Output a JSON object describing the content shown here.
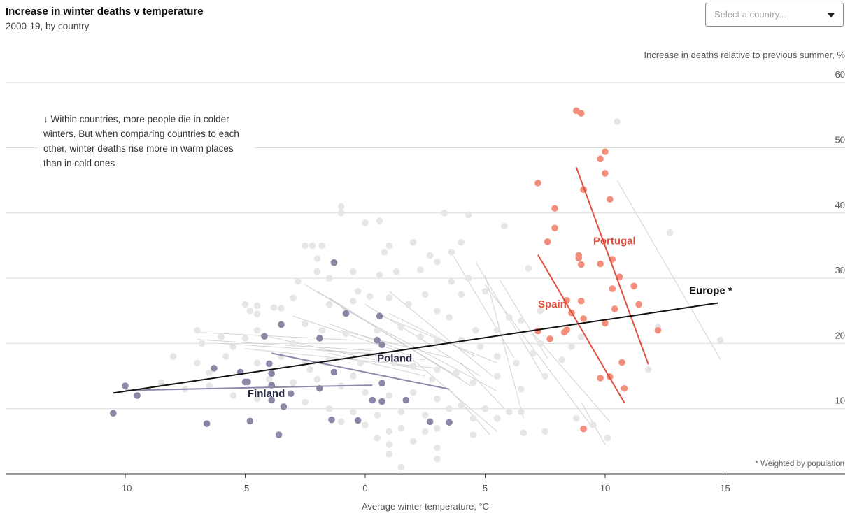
{
  "header": {
    "title": "Increase in winter deaths v temperature",
    "subtitle": "2000-19, by country"
  },
  "country_select": {
    "placeholder": "Select a country..."
  },
  "annotation": {
    "arrow": "↓",
    "lines": [
      "Within countries, more people die in colder",
      "winters. But when comparing countries to each",
      "other, winter deaths rise more in warm places",
      "than in cold ones"
    ]
  },
  "footnote": "* Weighted by population",
  "colors": {
    "cold": "#8a87a6",
    "warm": "#f28e7b",
    "warm_line": "#e0503e",
    "cold_line": "#8d89aa",
    "background_points": "#e6e6e6",
    "background_lines": "#d2d2d2",
    "europe": "#121212",
    "grid": "#dcdcdc",
    "cold_label": "#2d2e4a",
    "warm_label": "#e0503e"
  },
  "chart_data": {
    "type": "scatter",
    "title": "Increase in winter deaths v temperature",
    "subtitle": "2000-19, by country",
    "xlabel": "Average winter temperature, °C",
    "ylabel": "Increase in deaths relative to previous summer, %",
    "xlim": [
      -15,
      20
    ],
    "ylim": [
      0,
      60
    ],
    "xticks": [
      -10,
      -5,
      0,
      5,
      10,
      15
    ],
    "yticks": [
      10,
      20,
      30,
      40,
      50,
      60
    ],
    "grid": "horizontal",
    "highlighted_groups": [
      {
        "name": "Finland",
        "label_at": [
          -4.9,
          11.8
        ],
        "color_role": "cold",
        "trend": [
          [
            -10.0,
            12.8
          ],
          [
            0.3,
            13.6
          ]
        ],
        "points": [
          [
            -10.0,
            13.5
          ],
          [
            -9.5,
            12.0
          ],
          [
            -10.5,
            9.3
          ],
          [
            -6.6,
            7.7
          ],
          [
            -4.8,
            8.1
          ],
          [
            -3.6,
            6.0
          ],
          [
            -3.4,
            10.3
          ],
          [
            -3.9,
            11.3
          ],
          [
            -4.9,
            14.1
          ],
          [
            -5.2,
            15.6
          ],
          [
            -6.3,
            16.2
          ],
          [
            -3.5,
            22.9
          ]
        ]
      },
      {
        "name": "Poland",
        "label_at": [
          0.5,
          17.2
        ],
        "color_role": "cold",
        "trend": [
          [
            -3.9,
            18.5
          ],
          [
            3.5,
            13.0
          ]
        ],
        "points": [
          [
            -4.2,
            21.1
          ],
          [
            -4.0,
            16.9
          ],
          [
            -3.9,
            15.4
          ],
          [
            -3.9,
            13.6
          ],
          [
            -5.0,
            14.1
          ],
          [
            -3.1,
            12.3
          ],
          [
            -1.3,
            32.4
          ],
          [
            -0.8,
            24.6
          ],
          [
            0.6,
            24.2
          ],
          [
            0.5,
            20.5
          ],
          [
            0.7,
            19.8
          ],
          [
            -1.9,
            20.8
          ],
          [
            -1.3,
            15.6
          ],
          [
            -1.9,
            13.1
          ],
          [
            0.7,
            13.9
          ],
          [
            0.3,
            11.3
          ],
          [
            0.7,
            11.1
          ],
          [
            1.7,
            11.3
          ],
          [
            -1.4,
            8.3
          ],
          [
            -0.3,
            8.2
          ],
          [
            2.7,
            8.0
          ],
          [
            3.5,
            7.9
          ]
        ]
      },
      {
        "name": "Spain",
        "label_at": [
          7.2,
          25.5
        ],
        "color_role": "warm",
        "trend": [
          [
            7.2,
            33.6
          ],
          [
            10.8,
            10.9
          ]
        ],
        "points": [
          [
            7.2,
            44.6
          ],
          [
            7.9,
            40.7
          ],
          [
            7.9,
            37.7
          ],
          [
            7.6,
            35.6
          ],
          [
            8.9,
            33.1
          ],
          [
            9.0,
            32.1
          ],
          [
            8.4,
            26.6
          ],
          [
            9.0,
            26.5
          ],
          [
            8.6,
            24.7
          ],
          [
            9.1,
            23.8
          ],
          [
            7.2,
            21.9
          ],
          [
            7.7,
            20.7
          ],
          [
            8.4,
            22.1
          ],
          [
            8.3,
            21.7
          ],
          [
            9.8,
            14.7
          ],
          [
            10.2,
            14.9
          ],
          [
            9.1,
            6.9
          ]
        ]
      },
      {
        "name": "Portugal",
        "label_at": [
          9.5,
          35.2
        ],
        "color_role": "warm",
        "trend": [
          [
            8.8,
            47.0
          ],
          [
            11.8,
            16.8
          ]
        ],
        "points": [
          [
            8.8,
            55.7
          ],
          [
            9.0,
            55.3
          ],
          [
            10.0,
            49.4
          ],
          [
            9.8,
            48.3
          ],
          [
            10.0,
            46.1
          ],
          [
            9.1,
            43.6
          ],
          [
            10.2,
            42.1
          ],
          [
            8.9,
            33.5
          ],
          [
            9.8,
            32.2
          ],
          [
            10.3,
            32.9
          ],
          [
            10.6,
            30.2
          ],
          [
            10.3,
            28.4
          ],
          [
            11.2,
            28.8
          ],
          [
            11.4,
            26.0
          ],
          [
            10.4,
            25.3
          ],
          [
            10.0,
            23.1
          ],
          [
            12.2,
            22.0
          ],
          [
            10.7,
            17.1
          ],
          [
            10.8,
            13.1
          ]
        ]
      }
    ],
    "europe_trend": {
      "name": "Europe *",
      "label_at": [
        13.5,
        27.6
      ],
      "line": [
        [
          -10.5,
          12.4
        ],
        [
          14.7,
          26.2
        ]
      ]
    },
    "other_country_trends": [
      [
        [
          -7.0,
          21.7
        ],
        [
          -0.5,
          20.5
        ]
      ],
      [
        [
          -7.0,
          20.6
        ],
        [
          0.3,
          18.9
        ]
      ],
      [
        [
          -6.0,
          20.0
        ],
        [
          1.0,
          18.3
        ]
      ],
      [
        [
          -5.0,
          19.2
        ],
        [
          3.0,
          16.2
        ]
      ],
      [
        [
          -4.0,
          21.0
        ],
        [
          2.5,
          15.8
        ]
      ],
      [
        [
          -3.0,
          24.2
        ],
        [
          2.0,
          18.0
        ]
      ],
      [
        [
          -2.5,
          29.0
        ],
        [
          4.0,
          14.6
        ]
      ],
      [
        [
          -2.0,
          28.0
        ],
        [
          3.3,
          16.0
        ]
      ],
      [
        [
          -1.5,
          27.0
        ],
        [
          4.4,
          13.5
        ]
      ],
      [
        [
          -1.0,
          25.5
        ],
        [
          5.5,
          12.7
        ]
      ],
      [
        [
          -1.0,
          22.0
        ],
        [
          3.5,
          17.8
        ]
      ],
      [
        [
          0.0,
          26.0
        ],
        [
          4.8,
          15.0
        ]
      ],
      [
        [
          0.5,
          24.5
        ],
        [
          5.5,
          17.0
        ]
      ],
      [
        [
          1.0,
          28.0
        ],
        [
          5.3,
          15.0
        ]
      ],
      [
        [
          1.0,
          24.6
        ],
        [
          4.6,
          18.0
        ]
      ],
      [
        [
          -1.5,
          23.0
        ],
        [
          1.5,
          19.0
        ]
      ],
      [
        [
          -2.0,
          19.0
        ],
        [
          2.5,
          17.5
        ]
      ],
      [
        [
          -1.5,
          18.5
        ],
        [
          2.5,
          15.0
        ]
      ],
      [
        [
          3.5,
          34.5
        ],
        [
          6.2,
          17.8
        ]
      ],
      [
        [
          4.6,
          32.5
        ],
        [
          7.5,
          14.5
        ]
      ],
      [
        [
          5.0,
          30.5
        ],
        [
          6.6,
          8.5
        ]
      ],
      [
        [
          5.6,
          29.8
        ],
        [
          7.6,
          17.7
        ]
      ],
      [
        [
          5.0,
          29.0
        ],
        [
          9.5,
          7.0
        ]
      ],
      [
        [
          4.0,
          17.0
        ],
        [
          5.8,
          10.0
        ]
      ],
      [
        [
          2.0,
          17.5
        ],
        [
          5.5,
          6.5
        ]
      ],
      [
        [
          3.5,
          13.0
        ],
        [
          5.2,
          6.0
        ]
      ],
      [
        [
          7.0,
          21.5
        ],
        [
          10.2,
          8.0
        ]
      ],
      [
        [
          9.0,
          11.0
        ],
        [
          10.0,
          4.5
        ]
      ],
      [
        [
          10.5,
          45.0
        ],
        [
          14.8,
          17.6
        ]
      ]
    ],
    "other_country_points": [
      [
        -7.0,
        22.0
      ],
      [
        -6.8,
        20.0
      ],
      [
        -6.0,
        21.0
      ],
      [
        -5.5,
        19.5
      ],
      [
        -5.0,
        20.8
      ],
      [
        -4.5,
        22.0
      ],
      [
        -4.8,
        25.0
      ],
      [
        -4.5,
        25.8
      ],
      [
        -3.5,
        25.4
      ],
      [
        -3.0,
        27.0
      ],
      [
        -2.5,
        35.0
      ],
      [
        -2.8,
        29.5
      ],
      [
        -2.0,
        33.0
      ],
      [
        -1.8,
        35.0
      ],
      [
        -1.0,
        40.0
      ],
      [
        -1.0,
        41.0
      ],
      [
        0.0,
        38.5
      ],
      [
        0.6,
        38.8
      ],
      [
        1.0,
        35.0
      ],
      [
        2.0,
        35.5
      ],
      [
        3.3,
        40.0
      ],
      [
        4.3,
        39.7
      ],
      [
        5.8,
        38.0
      ],
      [
        3.6,
        34.0
      ],
      [
        -2.0,
        31.0
      ],
      [
        -1.5,
        30.0
      ],
      [
        -0.5,
        31.0
      ],
      [
        0.6,
        30.5
      ],
      [
        1.3,
        31.0
      ],
      [
        2.3,
        31.3
      ],
      [
        3.0,
        32.5
      ],
      [
        3.6,
        29.5
      ],
      [
        4.0,
        27.5
      ],
      [
        4.3,
        30.0
      ],
      [
        5.0,
        28.0
      ],
      [
        6.0,
        24.0
      ],
      [
        -1.5,
        26.0
      ],
      [
        -0.5,
        26.5
      ],
      [
        0.2,
        27.2
      ],
      [
        1.0,
        27.0
      ],
      [
        1.8,
        26.0
      ],
      [
        2.5,
        27.5
      ],
      [
        3.0,
        25.0
      ],
      [
        3.5,
        24.0
      ],
      [
        4.6,
        22.0
      ],
      [
        5.5,
        22.0
      ],
      [
        6.5,
        23.5
      ],
      [
        7.3,
        25.0
      ],
      [
        -2.5,
        23.0
      ],
      [
        -1.8,
        22.0
      ],
      [
        -0.8,
        21.5
      ],
      [
        0.5,
        22.0
      ],
      [
        1.5,
        22.5
      ],
      [
        2.3,
        21.0
      ],
      [
        3.0,
        20.5
      ],
      [
        4.0,
        20.5
      ],
      [
        4.8,
        19.5
      ],
      [
        5.5,
        18.0
      ],
      [
        6.3,
        17.0
      ],
      [
        7.0,
        18.5
      ],
      [
        -3.5,
        18.0
      ],
      [
        -2.5,
        17.0
      ],
      [
        -1.5,
        17.5
      ],
      [
        -0.2,
        17.0
      ],
      [
        1.2,
        17.0
      ],
      [
        2.0,
        16.5
      ],
      [
        3.0,
        16.0
      ],
      [
        3.8,
        15.5
      ],
      [
        4.5,
        14.0
      ],
      [
        5.5,
        15.0
      ],
      [
        6.5,
        13.0
      ],
      [
        7.5,
        15.0
      ],
      [
        -4.5,
        17.0
      ],
      [
        -4.0,
        14.5
      ],
      [
        -3.0,
        14.0
      ],
      [
        -2.0,
        14.5
      ],
      [
        -1.0,
        13.5
      ],
      [
        0.0,
        12.5
      ],
      [
        1.0,
        12.0
      ],
      [
        2.0,
        12.5
      ],
      [
        3.0,
        11.5
      ],
      [
        4.0,
        10.5
      ],
      [
        5.0,
        10.0
      ],
      [
        6.5,
        9.5
      ],
      [
        -6.5,
        13.5
      ],
      [
        -5.5,
        12.0
      ],
      [
        -4.5,
        11.5
      ],
      [
        -2.5,
        11.0
      ],
      [
        -1.5,
        10.0
      ],
      [
        -0.5,
        9.5
      ],
      [
        0.5,
        9.0
      ],
      [
        1.5,
        9.5
      ],
      [
        2.5,
        9.0
      ],
      [
        3.5,
        10.0
      ],
      [
        4.5,
        8.5
      ],
      [
        5.5,
        8.5
      ],
      [
        -1.0,
        8.0
      ],
      [
        0.0,
        7.5
      ],
      [
        1.0,
        6.5
      ],
      [
        1.5,
        7.0
      ],
      [
        2.5,
        6.5
      ],
      [
        3.0,
        7.0
      ],
      [
        4.5,
        6.0
      ],
      [
        0.5,
        5.5
      ],
      [
        1.0,
        4.5
      ],
      [
        1.0,
        3.0
      ],
      [
        3.0,
        4.0
      ],
      [
        2.0,
        5.0
      ],
      [
        1.5,
        1.0
      ],
      [
        3.0,
        2.3
      ],
      [
        -8.5,
        14.0
      ],
      [
        -7.5,
        13.0
      ],
      [
        -8.0,
        18.0
      ],
      [
        -7.0,
        17.0
      ],
      [
        -6.5,
        15.5
      ],
      [
        -5.8,
        18.0
      ],
      [
        -2.2,
        35.0
      ],
      [
        -0.3,
        28.0
      ],
      [
        0.8,
        34.0
      ],
      [
        2.7,
        33.5
      ],
      [
        4.0,
        35.5
      ],
      [
        6.8,
        31.5
      ],
      [
        7.3,
        20.0
      ],
      [
        8.2,
        17.5
      ],
      [
        8.6,
        19.5
      ],
      [
        9.0,
        21.0
      ],
      [
        8.8,
        8.5
      ],
      [
        9.5,
        7.5
      ],
      [
        10.1,
        5.5
      ],
      [
        7.5,
        6.5
      ],
      [
        6.6,
        6.3
      ],
      [
        6.0,
        9.5
      ],
      [
        10.5,
        54.0
      ],
      [
        12.7,
        37.0
      ],
      [
        12.2,
        22.5
      ],
      [
        14.8,
        20.5
      ],
      [
        11.8,
        16.0
      ],
      [
        -3.8,
        25.5
      ],
      [
        -4.5,
        24.5
      ],
      [
        -5.0,
        26.0
      ],
      [
        -3.0,
        20.0
      ],
      [
        -2.3,
        16.0
      ],
      [
        -0.5,
        15.0
      ],
      [
        2.8,
        14.5
      ]
    ]
  }
}
